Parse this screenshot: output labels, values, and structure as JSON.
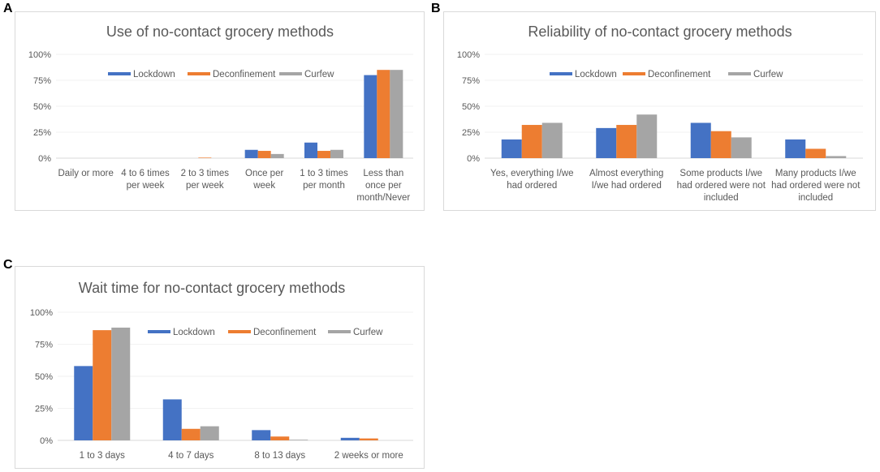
{
  "panels": [
    {
      "letter": "A",
      "title": "Use of no-contact grocery methods"
    },
    {
      "letter": "B",
      "title": "Reliability of no-contact grocery methods"
    },
    {
      "letter": "C",
      "title": "Wait time for no-contact grocery methods"
    }
  ],
  "colors": {
    "Lockdown": "#4472C4",
    "Deconfinement": "#ED7D31",
    "Curfew": "#A5A5A5"
  },
  "chart_data": [
    {
      "type": "bar",
      "title": "Use of no-contact grocery methods",
      "categories": [
        [
          "Daily or more"
        ],
        [
          "4 to 6 times",
          "per week"
        ],
        [
          "2 to 3 times",
          "per week"
        ],
        [
          "Once per",
          "week"
        ],
        [
          "1 to 3 times",
          "per month"
        ],
        [
          "Less than",
          "once per",
          "month/Never"
        ]
      ],
      "series": [
        {
          "name": "Lockdown",
          "values": [
            0,
            0,
            0,
            8,
            15,
            80
          ]
        },
        {
          "name": "Deconfinement",
          "values": [
            0,
            0,
            0.5,
            7,
            7,
            85
          ]
        },
        {
          "name": "Curfew",
          "values": [
            0,
            0,
            0,
            4,
            8,
            85
          ]
        }
      ],
      "yticks": [
        "0%",
        "25%",
        "50%",
        "75%",
        "100%"
      ],
      "ylim": [
        0,
        100
      ],
      "xlabel": "",
      "ylabel": "",
      "legend": "top"
    },
    {
      "type": "bar",
      "title": "Reliability of no-contact grocery methods",
      "categories": [
        [
          "Yes, everything I/we",
          "had ordered"
        ],
        [
          "Almost everything",
          "I/we had ordered"
        ],
        [
          "Some products I/we",
          "had ordered were not",
          "included"
        ],
        [
          "Many products I/we",
          "had ordered were not",
          "included"
        ]
      ],
      "series": [
        {
          "name": "Lockdown",
          "values": [
            18,
            29,
            34,
            18
          ]
        },
        {
          "name": "Deconfinement",
          "values": [
            32,
            32,
            26,
            9
          ]
        },
        {
          "name": "Curfew",
          "values": [
            34,
            42,
            20,
            2
          ]
        }
      ],
      "yticks": [
        "0%",
        "25%",
        "50%",
        "75%",
        "100%"
      ],
      "ylim": [
        0,
        100
      ],
      "xlabel": "",
      "ylabel": "",
      "legend": "top"
    },
    {
      "type": "bar",
      "title": "Wait time for no-contact grocery methods",
      "categories": [
        [
          "1 to 3 days"
        ],
        [
          "4 to 7 days"
        ],
        [
          "8 to 13 days"
        ],
        [
          "2 weeks or more"
        ]
      ],
      "series": [
        {
          "name": "Lockdown",
          "values": [
            58,
            32,
            8,
            2
          ]
        },
        {
          "name": "Deconfinement",
          "values": [
            86,
            9,
            3,
            1.5
          ]
        },
        {
          "name": "Curfew",
          "values": [
            88,
            11,
            0.5,
            0
          ]
        }
      ],
      "yticks": [
        "0%",
        "25%",
        "50%",
        "75%",
        "100%"
      ],
      "ylim": [
        0,
        100
      ],
      "xlabel": "",
      "ylabel": "",
      "legend": "top"
    }
  ]
}
